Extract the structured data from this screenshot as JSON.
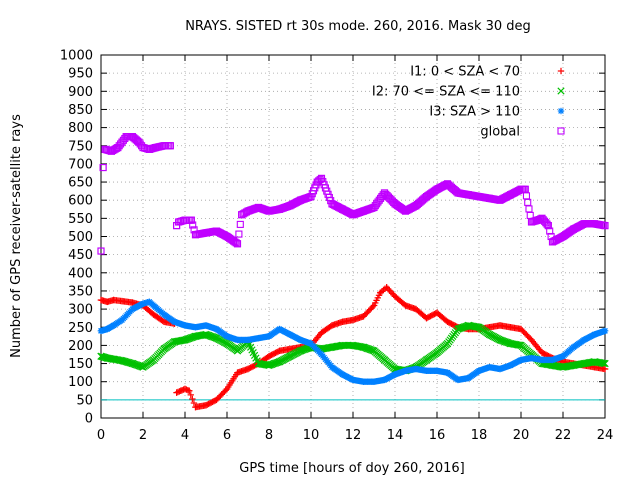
{
  "chart_data": {
    "type": "scatter",
    "title": "NRAYS. SISTED rt 30s mode. 260, 2016. Mask 30 deg",
    "xlabel": "GPS time [hours of doy 260, 2016]",
    "ylabel": "Number of GPS receiver-satellite rays",
    "xlim": [
      0,
      24
    ],
    "ylim": [
      0,
      1000
    ],
    "xticks": [
      0,
      2,
      4,
      6,
      8,
      10,
      12,
      14,
      16,
      18,
      20,
      22,
      24
    ],
    "yticks": [
      0,
      50,
      100,
      150,
      200,
      250,
      300,
      350,
      400,
      450,
      500,
      550,
      600,
      650,
      700,
      750,
      800,
      850,
      900,
      950,
      1000
    ],
    "grid": true,
    "legend_position": "top-right",
    "reference_line": {
      "y": 50,
      "color": "#00c0c0"
    },
    "series": [
      {
        "name": "I1: 0 < SZA < 70",
        "marker": "plus",
        "color": "#ff0000",
        "x": [
          0.0,
          0.3,
          0.6,
          1.0,
          1.5,
          2.0,
          2.5,
          3.0,
          3.5,
          3.6,
          3.8,
          4.0,
          4.2,
          4.5,
          5.0,
          5.5,
          6.0,
          6.5,
          7.0,
          7.5,
          8.0,
          8.5,
          9.0,
          9.5,
          10.0,
          10.5,
          11.0,
          11.5,
          12.0,
          12.5,
          13.0,
          13.3,
          13.6,
          14.0,
          14.5,
          15.0,
          15.5,
          16.0,
          16.5,
          17.0,
          17.5,
          18.0,
          18.5,
          19.0,
          19.5,
          20.0,
          20.5,
          21.0,
          21.5,
          22.0,
          22.5,
          23.0,
          23.5,
          24.0
        ],
        "y": [
          325,
          320,
          325,
          322,
          318,
          310,
          285,
          265,
          260,
          70,
          75,
          80,
          75,
          30,
          35,
          50,
          80,
          125,
          135,
          150,
          170,
          185,
          190,
          195,
          200,
          235,
          255,
          265,
          270,
          280,
          310,
          345,
          360,
          335,
          310,
          300,
          275,
          290,
          265,
          250,
          245,
          245,
          250,
          255,
          250,
          245,
          215,
          180,
          165,
          155,
          150,
          145,
          140,
          135
        ]
      },
      {
        "name": "I2: 70 <= SZA <= 110",
        "marker": "cross",
        "color": "#00c000",
        "x": [
          0.0,
          0.3,
          0.6,
          1.0,
          1.5,
          2.0,
          2.5,
          3.0,
          3.5,
          4.0,
          4.5,
          5.0,
          5.5,
          6.0,
          6.5,
          7.0,
          7.5,
          8.0,
          8.5,
          9.0,
          9.5,
          10.0,
          10.5,
          11.0,
          11.5,
          12.0,
          12.5,
          13.0,
          13.5,
          14.0,
          14.5,
          15.0,
          15.5,
          16.0,
          16.5,
          17.0,
          17.5,
          18.0,
          18.5,
          19.0,
          19.5,
          20.0,
          20.5,
          21.0,
          21.5,
          22.0,
          22.5,
          23.0,
          23.5,
          24.0
        ],
        "y": [
          170,
          165,
          162,
          158,
          150,
          140,
          160,
          190,
          210,
          215,
          225,
          230,
          220,
          205,
          185,
          210,
          150,
          145,
          155,
          170,
          185,
          195,
          190,
          195,
          200,
          200,
          195,
          185,
          160,
          135,
          130,
          140,
          160,
          180,
          205,
          245,
          255,
          250,
          230,
          215,
          205,
          200,
          175,
          150,
          145,
          140,
          145,
          150,
          155,
          150
        ]
      },
      {
        "name": "I3: SZA > 110",
        "marker": "star",
        "color": "#0080ff",
        "x": [
          0.0,
          0.3,
          0.6,
          1.0,
          1.5,
          2.0,
          2.3,
          2.6,
          3.0,
          3.5,
          4.0,
          4.5,
          5.0,
          5.5,
          6.0,
          6.5,
          7.0,
          7.5,
          8.0,
          8.5,
          9.0,
          9.5,
          10.0,
          10.5,
          11.0,
          11.5,
          12.0,
          12.5,
          13.0,
          13.5,
          14.0,
          14.5,
          15.0,
          15.5,
          16.0,
          16.5,
          17.0,
          17.5,
          18.0,
          18.5,
          19.0,
          19.5,
          20.0,
          20.5,
          21.0,
          21.5,
          22.0,
          22.5,
          23.0,
          23.5,
          24.0
        ],
        "y": [
          240,
          245,
          255,
          270,
          300,
          315,
          320,
          305,
          285,
          265,
          255,
          250,
          255,
          245,
          225,
          215,
          215,
          220,
          225,
          245,
          230,
          215,
          205,
          175,
          140,
          120,
          105,
          100,
          100,
          105,
          120,
          130,
          135,
          130,
          130,
          125,
          105,
          110,
          130,
          140,
          135,
          145,
          160,
          165,
          160,
          160,
          170,
          195,
          215,
          230,
          240
        ]
      },
      {
        "name": "global",
        "marker": "square",
        "color": "#c000ff",
        "x": [
          0.0,
          0.1,
          0.2,
          0.5,
          0.8,
          1.0,
          1.2,
          1.5,
          1.8,
          2.0,
          2.3,
          2.6,
          3.0,
          3.3,
          3.6,
          3.7,
          4.0,
          4.3,
          4.5,
          5.0,
          5.5,
          6.0,
          6.5,
          6.7,
          7.0,
          7.5,
          8.0,
          8.5,
          9.0,
          9.5,
          10.0,
          10.3,
          10.5,
          11.0,
          11.5,
          12.0,
          12.5,
          13.0,
          13.5,
          14.0,
          14.5,
          15.0,
          15.5,
          16.0,
          16.5,
          17.0,
          17.5,
          18.0,
          18.5,
          19.0,
          19.5,
          20.0,
          20.2,
          20.5,
          20.8,
          21.0,
          21.3,
          21.5,
          22.0,
          22.5,
          23.0,
          23.5,
          24.0
        ],
        "y": [
          460,
          690,
          740,
          735,
          745,
          760,
          775,
          775,
          760,
          745,
          740,
          745,
          750,
          750,
          530,
          540,
          545,
          545,
          505,
          510,
          515,
          500,
          480,
          560,
          570,
          580,
          570,
          575,
          585,
          600,
          610,
          650,
          660,
          590,
          575,
          560,
          570,
          580,
          620,
          590,
          570,
          585,
          610,
          630,
          645,
          620,
          615,
          610,
          605,
          600,
          615,
          630,
          630,
          540,
          545,
          550,
          530,
          485,
          500,
          520,
          535,
          535,
          530
        ]
      }
    ]
  }
}
